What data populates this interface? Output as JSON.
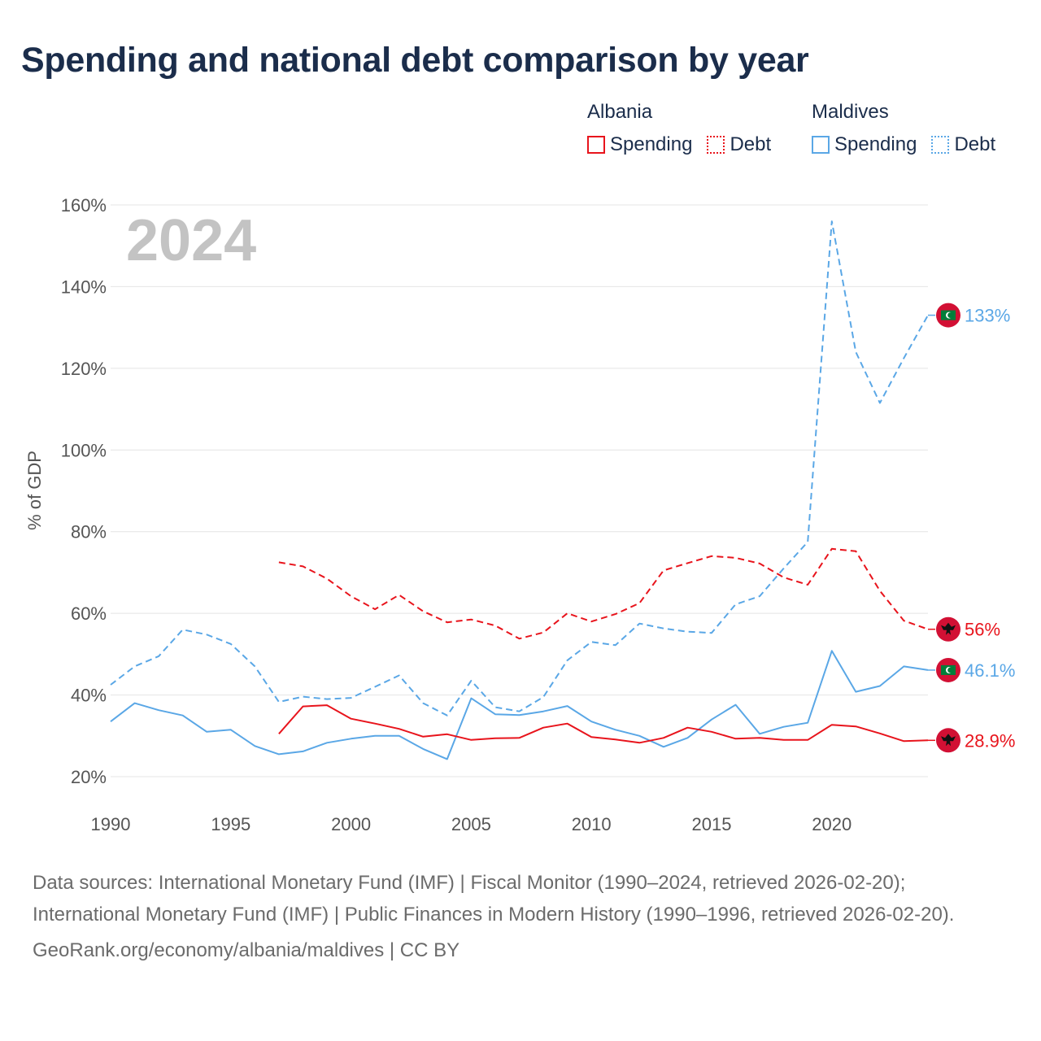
{
  "title": "Spending and national debt comparison by year",
  "legend": {
    "groups": [
      {
        "country": "Albania",
        "color": "#e8141c",
        "items": [
          {
            "label": "Spending",
            "style": "solid"
          },
          {
            "label": "Debt",
            "style": "dotted"
          }
        ]
      },
      {
        "country": "Maldives",
        "color": "#5aa7e6",
        "items": [
          {
            "label": "Spending",
            "style": "solid"
          },
          {
            "label": "Debt",
            "style": "dotted"
          }
        ]
      }
    ]
  },
  "year_label": "2024",
  "chart_data": {
    "type": "line",
    "title": "Spending and national debt comparison by year",
    "xlabel": "",
    "ylabel": "% of GDP",
    "xlim": [
      1990,
      2024
    ],
    "ylim": [
      20,
      160
    ],
    "x_ticks": [
      1990,
      1995,
      2000,
      2005,
      2010,
      2015,
      2020
    ],
    "y_ticks": [
      20,
      40,
      60,
      80,
      100,
      120,
      140,
      160
    ],
    "y_tick_labels": [
      "20%",
      "40%",
      "60%",
      "80%",
      "100%",
      "120%",
      "140%",
      "160%"
    ],
    "grid": true,
    "series": [
      {
        "name": "Maldives Debt",
        "country": "Maldives",
        "measure": "Debt",
        "color": "#5aa7e6",
        "dash": true,
        "end_label": "133%",
        "x": [
          1990,
          1991,
          1992,
          1993,
          1994,
          1995,
          1996,
          1997,
          1998,
          1999,
          2000,
          2001,
          2002,
          2003,
          2004,
          2005,
          2006,
          2007,
          2008,
          2009,
          2010,
          2011,
          2012,
          2013,
          2014,
          2015,
          2016,
          2017,
          2018,
          2019,
          2020,
          2021,
          2022,
          2023,
          2024
        ],
        "values": [
          42.5,
          47,
          49.5,
          56,
          54.8,
          52.5,
          47,
          38.3,
          39.6,
          39,
          39.3,
          42,
          44.8,
          38,
          35,
          43.5,
          37,
          36,
          39.5,
          48.5,
          53,
          52.2,
          57.5,
          56.3,
          55.5,
          55.2,
          62.2,
          64.2,
          71,
          77.5,
          156,
          124,
          111.5,
          122.5,
          133
        ]
      },
      {
        "name": "Albania Debt",
        "country": "Albania",
        "measure": "Debt",
        "color": "#e8141c",
        "dash": true,
        "end_label": "56%",
        "x": [
          1997,
          1998,
          1999,
          2000,
          2001,
          2002,
          2003,
          2004,
          2005,
          2006,
          2007,
          2008,
          2009,
          2010,
          2011,
          2012,
          2013,
          2014,
          2015,
          2016,
          2017,
          2018,
          2019,
          2020,
          2021,
          2022,
          2023,
          2024
        ],
        "values": [
          72.5,
          71.5,
          68.5,
          64.2,
          61,
          64.5,
          60.5,
          57.8,
          58.5,
          57,
          53.8,
          55.3,
          60,
          58,
          59.8,
          62.5,
          70.5,
          72.3,
          74,
          73.6,
          72.2,
          68.8,
          67,
          75.8,
          75.2,
          65.5,
          58.2,
          56.1
        ]
      },
      {
        "name": "Maldives Spending",
        "country": "Maldives",
        "measure": "Spending",
        "color": "#5aa7e6",
        "dash": false,
        "end_label": "46.1%",
        "x": [
          1990,
          1991,
          1992,
          1993,
          1994,
          1995,
          1996,
          1997,
          1998,
          1999,
          2000,
          2001,
          2002,
          2003,
          2004,
          2005,
          2006,
          2007,
          2008,
          2009,
          2010,
          2011,
          2012,
          2013,
          2014,
          2015,
          2016,
          2017,
          2018,
          2019,
          2020,
          2021,
          2022,
          2023,
          2024
        ],
        "values": [
          33.5,
          38,
          36.3,
          35,
          31,
          31.5,
          27.5,
          25.5,
          26.2,
          28.3,
          29.3,
          30,
          30,
          26.8,
          24.3,
          39.2,
          35.3,
          35.1,
          36,
          37.3,
          33.5,
          31.5,
          30,
          27.3,
          29.5,
          34,
          37.6,
          30.5,
          32.2,
          33.2,
          50.8,
          40.8,
          42.2,
          47,
          46.1
        ]
      },
      {
        "name": "Albania Spending",
        "country": "Albania",
        "measure": "Spending",
        "color": "#e8141c",
        "dash": false,
        "end_label": "28.9%",
        "x": [
          1997,
          1998,
          1999,
          2000,
          2001,
          2002,
          2003,
          2004,
          2005,
          2006,
          2007,
          2008,
          2009,
          2010,
          2011,
          2012,
          2013,
          2014,
          2015,
          2016,
          2017,
          2018,
          2019,
          2020,
          2021,
          2022,
          2023,
          2024
        ],
        "values": [
          30.5,
          37.2,
          37.5,
          34.2,
          33,
          31.7,
          29.8,
          30.4,
          29,
          29.4,
          29.5,
          32,
          33,
          29.7,
          29.1,
          28.3,
          29.5,
          32,
          31,
          29.3,
          29.5,
          29,
          29,
          32.7,
          32.3,
          30.6,
          28.7,
          28.9
        ]
      }
    ]
  },
  "sources": {
    "text": "Data sources: International Monetary Fund (IMF) | Fiscal Monitor (1990–2024, retrieved 2026-02-20); International Monetary Fund (IMF) | Public Finances in Modern History (1990–1996, retrieved 2026-02-20).",
    "credit": "GeoRank.org/economy/albania/maldives | CC BY"
  }
}
